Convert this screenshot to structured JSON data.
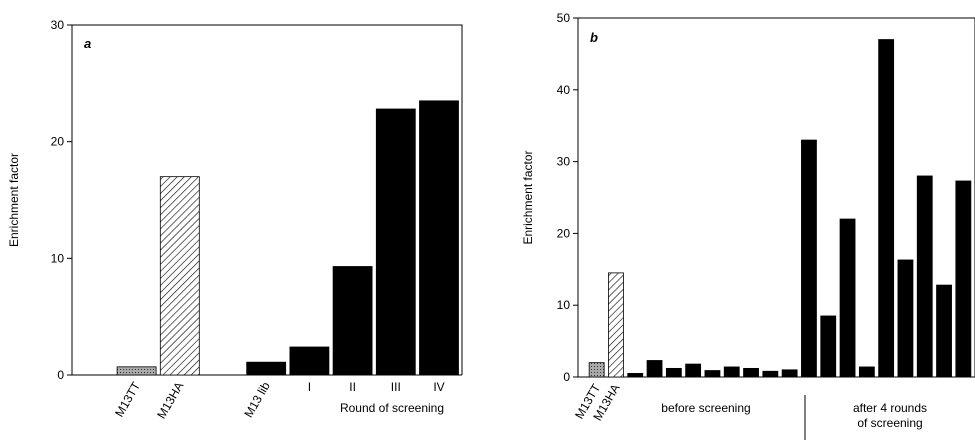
{
  "chart_data": [
    {
      "type": "bar",
      "title": "a",
      "y_label": "Enrichment factor",
      "x_label": "Round of screening",
      "categories": [
        "M13TT",
        "M13HA",
        null,
        "M13 lib",
        "I",
        "II",
        "III",
        "IV"
      ],
      "values": [
        0.7,
        17,
        null,
        1.1,
        2.4,
        9.3,
        22.8,
        23.5
      ],
      "fills": [
        "stipple",
        "hatch",
        null,
        "#000000",
        "#000000",
        "#000000",
        "#000000",
        "#000000"
      ],
      "rotate_labels": [
        true,
        true,
        null,
        true,
        false,
        false,
        false,
        false
      ],
      "ylim": [
        0,
        30
      ],
      "yticks": [
        0,
        10,
        20,
        30
      ]
    },
    {
      "type": "bar",
      "title": "b",
      "y_label": "Enrichment factor",
      "categories": [
        "M13TT",
        "M13HA",
        null,
        null,
        null,
        null,
        null,
        null,
        null,
        null,
        null,
        null,
        null,
        null,
        null,
        null,
        null,
        null,
        null,
        null
      ],
      "values": [
        2,
        14.5,
        0.5,
        2.3,
        1.2,
        1.8,
        0.9,
        1.4,
        1.2,
        0.8,
        1.0,
        33,
        8.5,
        22,
        1.4,
        47,
        16.3,
        28,
        12.8,
        27.3
      ],
      "fills": [
        "stipple",
        "hatch",
        "#000000",
        "#000000",
        "#000000",
        "#000000",
        "#000000",
        "#000000",
        "#000000",
        "#000000",
        "#000000",
        "#000000",
        "#000000",
        "#000000",
        "#000000",
        "#000000",
        "#000000",
        "#000000",
        "#000000",
        "#000000"
      ],
      "rotate_labels": [
        true,
        true,
        null,
        null,
        null,
        null,
        null,
        null,
        null,
        null,
        null,
        null,
        null,
        null,
        null,
        null,
        null,
        null,
        null,
        null
      ],
      "group_labels": [
        [
          "before  screening"
        ],
        [
          "after 4 rounds",
          "of screening"
        ]
      ],
      "ylim": [
        0,
        50
      ],
      "yticks": [
        0,
        10,
        20,
        30,
        40,
        50
      ]
    }
  ]
}
